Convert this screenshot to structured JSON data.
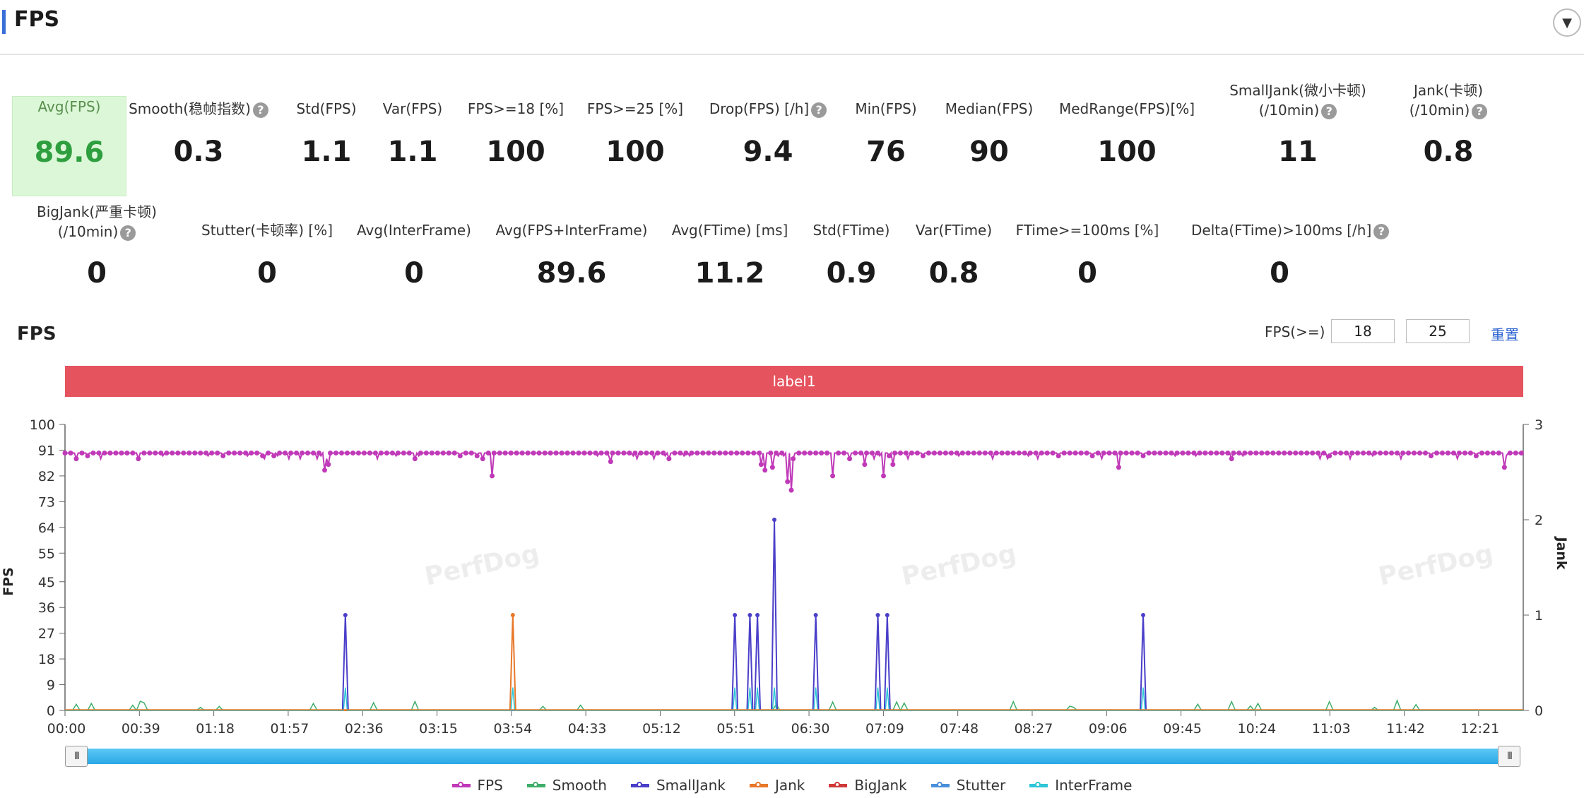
{
  "header": {
    "title": "FPS",
    "collapse_icon": "▼"
  },
  "stats_row1": [
    {
      "label": "Avg(FPS)",
      "value": "89.6",
      "help": false,
      "highlight": true
    },
    {
      "label": "Smooth(稳帧指数)",
      "value": "0.3",
      "help": true
    },
    {
      "label": "Std(FPS)",
      "value": "1.1",
      "help": false
    },
    {
      "label": "Var(FPS)",
      "value": "1.1",
      "help": false
    },
    {
      "label": "FPS>=18 [%]",
      "value": "100",
      "help": false
    },
    {
      "label": "FPS>=25 [%]",
      "value": "100",
      "help": false
    },
    {
      "label": "Drop(FPS) [/h]",
      "value": "9.4",
      "help": true
    },
    {
      "label": "Min(FPS)",
      "value": "76",
      "help": false
    },
    {
      "label": "Median(FPS)",
      "value": "90",
      "help": false
    },
    {
      "label": "MedRange(FPS)[%]",
      "value": "100",
      "help": false
    },
    {
      "label": "SmallJank(微小卡顿)",
      "label2": "(/10min)",
      "value": "11",
      "help": true
    },
    {
      "label": "Jank(卡顿)",
      "label2": "(/10min)",
      "value": "0.8",
      "help": true
    }
  ],
  "stats_row2": [
    {
      "label": "BigJank(严重卡顿)",
      "label2": "(/10min)",
      "value": "0",
      "help": true
    },
    {
      "label": "Stutter(卡顿率) [%]",
      "value": "0",
      "help": false
    },
    {
      "label": "Avg(InterFrame)",
      "value": "0",
      "help": false
    },
    {
      "label": "Avg(FPS+InterFrame)",
      "value": "89.6",
      "help": false
    },
    {
      "label": "Avg(FTime) [ms]",
      "value": "11.2",
      "help": false
    },
    {
      "label": "Std(FTime)",
      "value": "0.9",
      "help": false
    },
    {
      "label": "Var(FTime)",
      "value": "0.8",
      "help": false
    },
    {
      "label": "FTime>=100ms [%]",
      "value": "0",
      "help": false
    },
    {
      "label": "Delta(FTime)>100ms [/h]",
      "value": "0",
      "help": true
    }
  ],
  "chart_section": {
    "title": "FPS",
    "threshold_label": "FPS(>=)",
    "threshold1": "18",
    "threshold2": "25",
    "reset_label": "重置",
    "band_label": "label1",
    "watermark": "PerfDog"
  },
  "chart_data": {
    "type": "line",
    "x_ticks": [
      "00:00",
      "00:39",
      "01:18",
      "01:57",
      "02:36",
      "03:15",
      "03:54",
      "04:33",
      "05:12",
      "05:51",
      "06:30",
      "07:09",
      "07:48",
      "08:27",
      "09:06",
      "09:45",
      "10:24",
      "11:03",
      "11:42",
      "12:21"
    ],
    "x_range_seconds": [
      0,
      775
    ],
    "y_left": {
      "label": "FPS",
      "ticks": [
        0,
        9,
        18,
        27,
        36,
        45,
        55,
        64,
        73,
        82,
        91,
        100
      ],
      "range": [
        0,
        100
      ]
    },
    "y_right": {
      "label": "Jank",
      "ticks": [
        0,
        1,
        2,
        3
      ],
      "range": [
        0,
        3
      ]
    },
    "fps_baseline": 90,
    "fps_dips": [
      {
        "t": 138,
        "v": 84
      },
      {
        "t": 140,
        "v": 86
      },
      {
        "t": 227,
        "v": 82
      },
      {
        "t": 370,
        "v": 86
      },
      {
        "t": 372,
        "v": 84
      },
      {
        "t": 376,
        "v": 85
      },
      {
        "t": 384,
        "v": 80
      },
      {
        "t": 386,
        "v": 77
      },
      {
        "t": 408,
        "v": 82
      },
      {
        "t": 425,
        "v": 86
      },
      {
        "t": 435,
        "v": 82
      },
      {
        "t": 440,
        "v": 86
      },
      {
        "t": 560,
        "v": 85
      },
      {
        "t": 765,
        "v": 85
      },
      {
        "t": 290,
        "v": 87
      },
      {
        "t": 620,
        "v": 88
      }
    ],
    "series": [
      {
        "name": "FPS",
        "color": "#c039b8",
        "axis": "left"
      },
      {
        "name": "Smooth",
        "color": "#3fae6a",
        "axis": "left"
      },
      {
        "name": "SmallJank",
        "color": "#4a3fc9",
        "axis": "right",
        "points": [
          {
            "t": 149,
            "v": 1
          },
          {
            "t": 356,
            "v": 1
          },
          {
            "t": 364,
            "v": 1
          },
          {
            "t": 368,
            "v": 1
          },
          {
            "t": 377,
            "v": 2
          },
          {
            "t": 399,
            "v": 1
          },
          {
            "t": 432,
            "v": 1
          },
          {
            "t": 437,
            "v": 1
          },
          {
            "t": 573,
            "v": 1
          }
        ]
      },
      {
        "name": "Jank",
        "color": "#e8782a",
        "axis": "right",
        "points": [
          {
            "t": 238,
            "v": 1
          }
        ]
      },
      {
        "name": "BigJank",
        "color": "#d03a3a",
        "axis": "right"
      },
      {
        "name": "Stutter",
        "color": "#4a90d9",
        "axis": "right"
      },
      {
        "name": "InterFrame",
        "color": "#2ec6d8",
        "axis": "right"
      }
    ]
  },
  "slider_grip": "III"
}
